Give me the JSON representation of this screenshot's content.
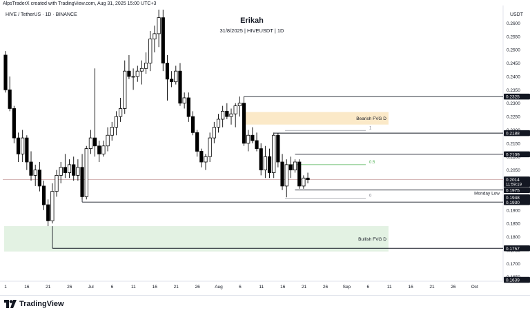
{
  "header": {
    "credit": "AlpsTraderX created with TradingView.com, Aug 31, 2025 15:00 UTC+3",
    "symbol": "HIVE / TetherUS · 1D · BINANCE",
    "title": "Erikah",
    "subtitle": "31/8/2025 | HIVEUSDT | 1D",
    "currency": "USDT"
  },
  "footer": {
    "brand": "TradingView"
  },
  "colors": {
    "bull": "#ffffff",
    "bear": "#000000",
    "bearish_zone": "#fbe9c8",
    "bullish_zone": "#e3f2e3",
    "fib_mid": "#4caf50",
    "current_price_line": "#c8a0a0"
  },
  "chart_data": {
    "type": "candlestick",
    "symbol": "HIVEUSDT",
    "interval": "1D",
    "ylim": [
      0.1639,
      0.265
    ],
    "y_ticks": [
      "0.2600",
      "0.2550",
      "0.2500",
      "0.2450",
      "0.2400",
      "0.2350",
      "0.2300",
      "0.2250",
      "0.2200",
      "0.2150",
      "0.2100",
      "0.2050",
      "0.2000",
      "0.1950",
      "0.1900",
      "0.1850",
      "0.1800",
      "0.1750",
      "0.1700",
      "0.1650"
    ],
    "x_labels": [
      "1",
      "16",
      "21",
      "26",
      "Jul",
      "6",
      "11",
      "16",
      "21",
      "26",
      "Aug",
      "6",
      "11",
      "16",
      "21",
      "26",
      "Sep",
      "6",
      "11",
      "16",
      "21",
      "26",
      "Oct"
    ],
    "price_tags": [
      {
        "label": "0.2325",
        "value": 0.2325
      },
      {
        "label": "0.2188",
        "value": 0.2188
      },
      {
        "label": "0.2109",
        "value": 0.2109
      },
      {
        "label": "0.2014",
        "sub": "11:59:19",
        "value": 0.2014,
        "current": true
      },
      {
        "label": "0.1975",
        "value": 0.1975
      },
      {
        "label": "0.1948",
        "value": 0.1948
      },
      {
        "label": "0.1930",
        "value": 0.193
      },
      {
        "label": "0.1757",
        "value": 0.1757
      },
      {
        "label": "0.1639",
        "value": 0.1639
      }
    ],
    "levels": [
      {
        "value": 0.2325,
        "start": 56
      },
      {
        "value": 0.2188,
        "start": 63
      },
      {
        "value": 0.2109,
        "start": 68
      },
      {
        "value": 0.1975,
        "start": 68,
        "label": "Monday Low"
      },
      {
        "value": 0.193,
        "start": 18
      },
      {
        "value": 0.1757,
        "start": 10
      }
    ],
    "zones": [
      {
        "label": "Bearish FVG D",
        "top": 0.2267,
        "bottom": 0.222,
        "start": 56,
        "kind": "bearish"
      },
      {
        "label": "Bullish FVG D",
        "top": 0.184,
        "bottom": 0.1745,
        "start": 0,
        "kind": "bullish"
      }
    ],
    "fib": [
      {
        "label": "1",
        "value": 0.2198
      },
      {
        "label": "0.5",
        "value": 0.207
      },
      {
        "label": "0",
        "value": 0.1945
      }
    ],
    "candles": [
      {
        "o": 0.248,
        "h": 0.2495,
        "l": 0.234,
        "c": 0.235
      },
      {
        "o": 0.235,
        "h": 0.24,
        "l": 0.227,
        "c": 0.228
      },
      {
        "o": 0.228,
        "h": 0.229,
        "l": 0.215,
        "c": 0.217
      },
      {
        "o": 0.217,
        "h": 0.219,
        "l": 0.208,
        "c": 0.211
      },
      {
        "o": 0.211,
        "h": 0.22,
        "l": 0.208,
        "c": 0.217
      },
      {
        "o": 0.217,
        "h": 0.218,
        "l": 0.205,
        "c": 0.208
      },
      {
        "o": 0.208,
        "h": 0.212,
        "l": 0.201,
        "c": 0.203
      },
      {
        "o": 0.203,
        "h": 0.207,
        "l": 0.199,
        "c": 0.205
      },
      {
        "o": 0.205,
        "h": 0.208,
        "l": 0.197,
        "c": 0.199
      },
      {
        "o": 0.199,
        "h": 0.201,
        "l": 0.19,
        "c": 0.192
      },
      {
        "o": 0.192,
        "h": 0.194,
        "l": 0.184,
        "c": 0.186
      },
      {
        "o": 0.186,
        "h": 0.2,
        "l": 0.185,
        "c": 0.197
      },
      {
        "o": 0.197,
        "h": 0.205,
        "l": 0.195,
        "c": 0.203
      },
      {
        "o": 0.203,
        "h": 0.208,
        "l": 0.2,
        "c": 0.206
      },
      {
        "o": 0.206,
        "h": 0.211,
        "l": 0.202,
        "c": 0.204
      },
      {
        "o": 0.204,
        "h": 0.209,
        "l": 0.202,
        "c": 0.207
      },
      {
        "o": 0.207,
        "h": 0.21,
        "l": 0.201,
        "c": 0.203
      },
      {
        "o": 0.203,
        "h": 0.209,
        "l": 0.201,
        "c": 0.206
      },
      {
        "o": 0.206,
        "h": 0.211,
        "l": 0.194,
        "c": 0.195
      },
      {
        "o": 0.195,
        "h": 0.214,
        "l": 0.194,
        "c": 0.213
      },
      {
        "o": 0.213,
        "h": 0.22,
        "l": 0.211,
        "c": 0.217
      },
      {
        "o": 0.217,
        "h": 0.243,
        "l": 0.21,
        "c": 0.214
      },
      {
        "o": 0.214,
        "h": 0.216,
        "l": 0.208,
        "c": 0.211
      },
      {
        "o": 0.211,
        "h": 0.216,
        "l": 0.21,
        "c": 0.214
      },
      {
        "o": 0.214,
        "h": 0.221,
        "l": 0.212,
        "c": 0.218
      },
      {
        "o": 0.218,
        "h": 0.223,
        "l": 0.216,
        "c": 0.221
      },
      {
        "o": 0.221,
        "h": 0.227,
        "l": 0.218,
        "c": 0.225
      },
      {
        "o": 0.225,
        "h": 0.232,
        "l": 0.223,
        "c": 0.228
      },
      {
        "o": 0.228,
        "h": 0.246,
        "l": 0.226,
        "c": 0.242
      },
      {
        "o": 0.242,
        "h": 0.248,
        "l": 0.239,
        "c": 0.24
      },
      {
        "o": 0.24,
        "h": 0.243,
        "l": 0.235,
        "c": 0.24
      },
      {
        "o": 0.24,
        "h": 0.244,
        "l": 0.238,
        "c": 0.242
      },
      {
        "o": 0.242,
        "h": 0.246,
        "l": 0.237,
        "c": 0.243
      },
      {
        "o": 0.243,
        "h": 0.249,
        "l": 0.241,
        "c": 0.245
      },
      {
        "o": 0.245,
        "h": 0.257,
        "l": 0.242,
        "c": 0.254
      },
      {
        "o": 0.254,
        "h": 0.259,
        "l": 0.249,
        "c": 0.256
      },
      {
        "o": 0.256,
        "h": 0.265,
        "l": 0.251,
        "c": 0.262
      },
      {
        "o": 0.262,
        "h": 0.265,
        "l": 0.242,
        "c": 0.245
      },
      {
        "o": 0.245,
        "h": 0.248,
        "l": 0.231,
        "c": 0.239
      },
      {
        "o": 0.239,
        "h": 0.242,
        "l": 0.236,
        "c": 0.238
      },
      {
        "o": 0.238,
        "h": 0.244,
        "l": 0.237,
        "c": 0.242
      },
      {
        "o": 0.242,
        "h": 0.245,
        "l": 0.229,
        "c": 0.23
      },
      {
        "o": 0.23,
        "h": 0.234,
        "l": 0.228,
        "c": 0.232
      },
      {
        "o": 0.232,
        "h": 0.234,
        "l": 0.223,
        "c": 0.225
      },
      {
        "o": 0.225,
        "h": 0.227,
        "l": 0.218,
        "c": 0.219
      },
      {
        "o": 0.219,
        "h": 0.22,
        "l": 0.21,
        "c": 0.212
      },
      {
        "o": 0.212,
        "h": 0.213,
        "l": 0.206,
        "c": 0.208
      },
      {
        "o": 0.208,
        "h": 0.211,
        "l": 0.205,
        "c": 0.21
      },
      {
        "o": 0.21,
        "h": 0.219,
        "l": 0.208,
        "c": 0.217
      },
      {
        "o": 0.217,
        "h": 0.223,
        "l": 0.215,
        "c": 0.221
      },
      {
        "o": 0.221,
        "h": 0.226,
        "l": 0.219,
        "c": 0.224
      },
      {
        "o": 0.224,
        "h": 0.229,
        "l": 0.221,
        "c": 0.227
      },
      {
        "o": 0.227,
        "h": 0.23,
        "l": 0.224,
        "c": 0.225
      },
      {
        "o": 0.225,
        "h": 0.228,
        "l": 0.222,
        "c": 0.226
      },
      {
        "o": 0.226,
        "h": 0.23,
        "l": 0.221,
        "c": 0.229
      },
      {
        "o": 0.229,
        "h": 0.2325,
        "l": 0.225,
        "c": 0.23
      },
      {
        "o": 0.23,
        "h": 0.2325,
        "l": 0.214,
        "c": 0.215
      },
      {
        "o": 0.215,
        "h": 0.22,
        "l": 0.212,
        "c": 0.218
      },
      {
        "o": 0.218,
        "h": 0.221,
        "l": 0.215,
        "c": 0.216
      },
      {
        "o": 0.216,
        "h": 0.219,
        "l": 0.212,
        "c": 0.213
      },
      {
        "o": 0.213,
        "h": 0.215,
        "l": 0.203,
        "c": 0.205
      },
      {
        "o": 0.205,
        "h": 0.214,
        "l": 0.202,
        "c": 0.21
      },
      {
        "o": 0.21,
        "h": 0.213,
        "l": 0.202,
        "c": 0.204
      },
      {
        "o": 0.204,
        "h": 0.219,
        "l": 0.202,
        "c": 0.218
      },
      {
        "o": 0.218,
        "h": 0.2188,
        "l": 0.206,
        "c": 0.208
      },
      {
        "o": 0.208,
        "h": 0.211,
        "l": 0.1975,
        "c": 0.199
      },
      {
        "o": 0.199,
        "h": 0.209,
        "l": 0.1948,
        "c": 0.207
      },
      {
        "o": 0.207,
        "h": 0.21,
        "l": 0.202,
        "c": 0.205
      },
      {
        "o": 0.205,
        "h": 0.209,
        "l": 0.204,
        "c": 0.208
      },
      {
        "o": 0.208,
        "h": 0.209,
        "l": 0.198,
        "c": 0.199
      },
      {
        "o": 0.199,
        "h": 0.203,
        "l": 0.198,
        "c": 0.202
      },
      {
        "o": 0.202,
        "h": 0.204,
        "l": 0.2,
        "c": 0.2014
      }
    ]
  }
}
